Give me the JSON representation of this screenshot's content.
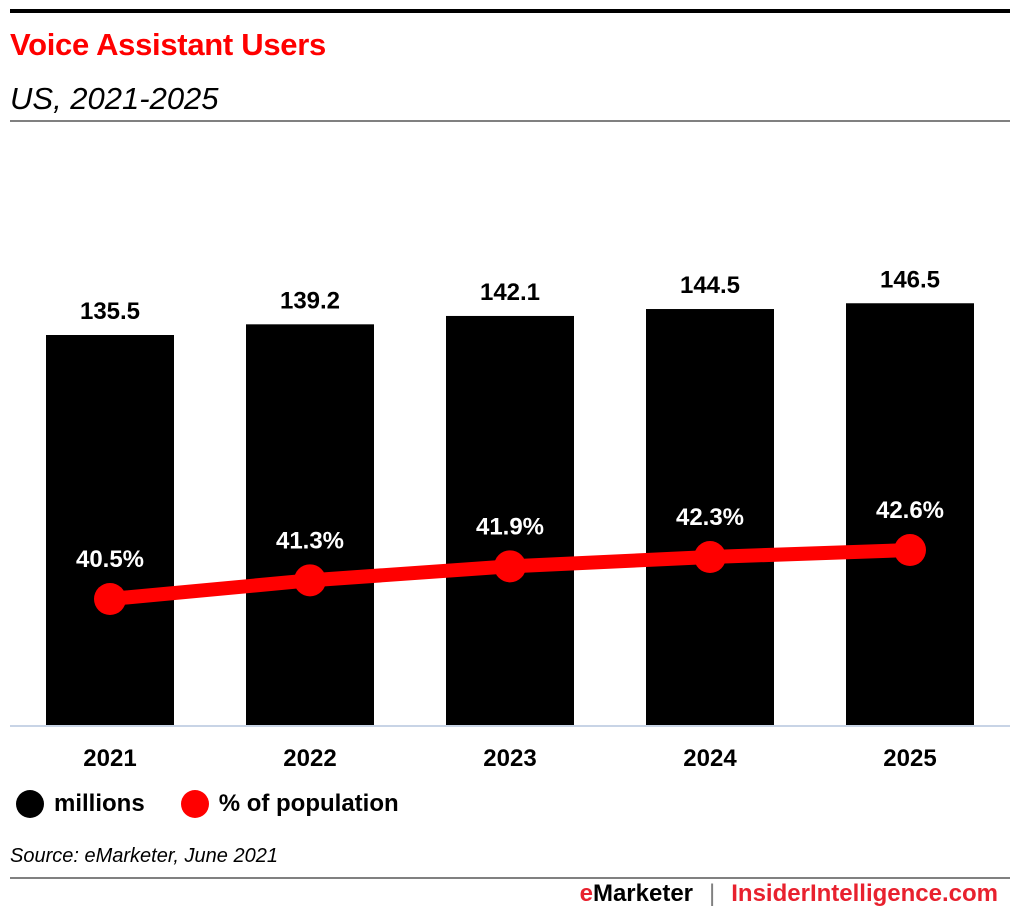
{
  "header": {
    "title": "Voice Assistant Users",
    "subtitle": "US, 2021-2025"
  },
  "legend": [
    {
      "label": "millions",
      "color": "#000000"
    },
    {
      "label": "% of population",
      "color": "#ff0000"
    }
  ],
  "source": "Source: eMarketer, June 2021",
  "footer": {
    "brand_e": "e",
    "brand_rest": "Marketer",
    "separator": "|",
    "site": "InsiderIntelligence.com"
  },
  "colors": {
    "title": "#ff0000",
    "bars": "#000000",
    "line": "#ff0000",
    "axis": "#c8d4e6"
  },
  "chart_data": {
    "type": "bar",
    "title": "Voice Assistant Users",
    "subtitle": "US, 2021-2025",
    "categories": [
      "2021",
      "2022",
      "2023",
      "2024",
      "2025"
    ],
    "series": [
      {
        "name": "millions",
        "type": "bar",
        "values": [
          135.5,
          139.2,
          142.1,
          144.5,
          146.5
        ],
        "labels": [
          "135.5",
          "139.2",
          "142.1",
          "144.5",
          "146.5"
        ]
      },
      {
        "name": "% of population",
        "type": "line",
        "values": [
          40.5,
          41.3,
          41.9,
          42.3,
          42.6
        ],
        "labels": [
          "40.5%",
          "41.3%",
          "41.9%",
          "42.3%",
          "42.6%"
        ]
      }
    ],
    "xlabel": "",
    "ylabel": "",
    "grid": false,
    "legend_position": "bottom-left"
  }
}
